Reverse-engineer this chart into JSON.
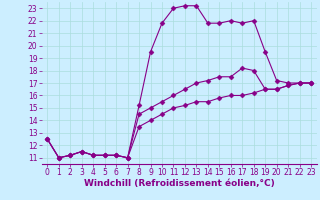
{
  "background_color": "#cceeff",
  "line_color": "#880088",
  "marker": "D",
  "marker_size": 2.5,
  "line_width": 0.8,
  "xlabel": "Windchill (Refroidissement éolien,°C)",
  "xlabel_fontsize": 6.5,
  "tick_fontsize": 5.5,
  "xlim": [
    -0.5,
    23.5
  ],
  "ylim": [
    10.5,
    23.5
  ],
  "yticks": [
    11,
    12,
    13,
    14,
    15,
    16,
    17,
    18,
    19,
    20,
    21,
    22,
    23
  ],
  "xticks": [
    0,
    1,
    2,
    3,
    4,
    5,
    6,
    7,
    8,
    9,
    10,
    11,
    12,
    13,
    14,
    15,
    16,
    17,
    18,
    19,
    20,
    21,
    22,
    23
  ],
  "series": [
    {
      "x": [
        0,
        1,
        2,
        3,
        4,
        5,
        6,
        7,
        8,
        9,
        10,
        11,
        12,
        13,
        14,
        15,
        16,
        17,
        18,
        19,
        20,
        21,
        22,
        23
      ],
      "y": [
        12.5,
        11.0,
        11.2,
        11.5,
        11.2,
        11.2,
        11.2,
        11.0,
        15.2,
        19.5,
        21.8,
        23.0,
        23.2,
        23.2,
        21.8,
        21.8,
        22.0,
        21.8,
        22.0,
        19.5,
        17.2,
        17.0,
        17.0,
        17.0
      ]
    },
    {
      "x": [
        0,
        1,
        2,
        3,
        4,
        5,
        6,
        7,
        8,
        9,
        10,
        11,
        12,
        13,
        14,
        15,
        16,
        17,
        18,
        19,
        20,
        21,
        22,
        23
      ],
      "y": [
        12.5,
        11.0,
        11.2,
        11.5,
        11.2,
        11.2,
        11.2,
        11.0,
        14.5,
        15.0,
        15.5,
        16.0,
        16.5,
        17.0,
        17.2,
        17.5,
        17.5,
        18.2,
        18.0,
        16.5,
        16.5,
        16.8,
        17.0,
        17.0
      ]
    },
    {
      "x": [
        0,
        1,
        2,
        3,
        4,
        5,
        6,
        7,
        8,
        9,
        10,
        11,
        12,
        13,
        14,
        15,
        16,
        17,
        18,
        19,
        20,
        21,
        22,
        23
      ],
      "y": [
        12.5,
        11.0,
        11.2,
        11.5,
        11.2,
        11.2,
        11.2,
        11.0,
        13.5,
        14.0,
        14.5,
        15.0,
        15.2,
        15.5,
        15.5,
        15.8,
        16.0,
        16.0,
        16.2,
        16.5,
        16.5,
        16.8,
        17.0,
        17.0
      ]
    }
  ]
}
